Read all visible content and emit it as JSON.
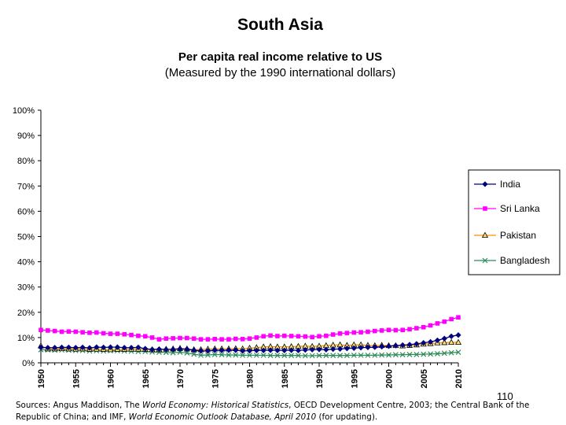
{
  "slide": {
    "title": "South Asia",
    "page_number": "110",
    "sources": {
      "lead": "Sources: Angus Maddison, The ",
      "work1": "World Economy: Historical Statistics",
      "mid": ", OECD Development Centre, 2003; the Central Bank of the Republic of China; and IMF, ",
      "work2": "World Economic Outlook Database, April 2010",
      "tail": " (for updating)."
    }
  },
  "chart_data": {
    "type": "line",
    "title": "Per capita real income relative to US",
    "subtitle": "(Measured by the 1990 international dollars)",
    "xlabel": "",
    "ylabel": "",
    "ylim": [
      0,
      100
    ],
    "yticks": [
      "0%",
      "10%",
      "20%",
      "30%",
      "40%",
      "50%",
      "60%",
      "70%",
      "80%",
      "90%",
      "100%"
    ],
    "xticks": [
      "1950",
      "1955",
      "1960",
      "1965",
      "1970",
      "1975",
      "1980",
      "1985",
      "1990",
      "1995",
      "2000",
      "2005",
      "2010"
    ],
    "x": [
      1950,
      1951,
      1952,
      1953,
      1954,
      1955,
      1956,
      1957,
      1958,
      1959,
      1960,
      1961,
      1962,
      1963,
      1964,
      1965,
      1966,
      1967,
      1968,
      1969,
      1970,
      1971,
      1972,
      1973,
      1974,
      1975,
      1976,
      1977,
      1978,
      1979,
      1980,
      1981,
      1982,
      1983,
      1984,
      1985,
      1986,
      1987,
      1988,
      1989,
      1990,
      1991,
      1992,
      1993,
      1994,
      1995,
      1996,
      1997,
      1998,
      1999,
      2000,
      2001,
      2002,
      2003,
      2004,
      2005,
      2006,
      2007,
      2008,
      2009,
      2010
    ],
    "grid": false,
    "legend": "right",
    "series": [
      {
        "name": "India",
        "color": "#000080",
        "marker": "diamond",
        "values": [
          6.1,
          6.0,
          6.0,
          6.1,
          6.1,
          6.0,
          6.1,
          5.9,
          6.2,
          6.1,
          6.2,
          6.2,
          6.0,
          6.0,
          6.1,
          5.6,
          5.3,
          5.4,
          5.3,
          5.3,
          5.5,
          5.4,
          5.0,
          4.7,
          4.7,
          5.0,
          4.9,
          5.0,
          5.0,
          4.7,
          4.8,
          4.9,
          4.9,
          5.0,
          4.9,
          4.9,
          5.0,
          4.9,
          5.1,
          5.2,
          5.3,
          5.2,
          5.4,
          5.5,
          5.7,
          5.8,
          6.0,
          6.1,
          6.2,
          6.4,
          6.6,
          6.8,
          7.0,
          7.2,
          7.5,
          7.9,
          8.3,
          8.9,
          9.6,
          10.5,
          11.0
        ]
      },
      {
        "name": "Sri Lanka",
        "color": "#ff00ff",
        "marker": "square",
        "values": [
          13.0,
          12.8,
          12.6,
          12.3,
          12.4,
          12.3,
          12.1,
          11.9,
          12.0,
          11.7,
          11.5,
          11.5,
          11.3,
          11.0,
          10.7,
          10.5,
          10.0,
          9.3,
          9.6,
          9.7,
          9.8,
          9.8,
          9.6,
          9.3,
          9.3,
          9.4,
          9.3,
          9.3,
          9.5,
          9.4,
          9.6,
          10.0,
          10.5,
          10.8,
          10.6,
          10.7,
          10.6,
          10.5,
          10.4,
          10.2,
          10.5,
          10.7,
          11.2,
          11.6,
          11.8,
          12.0,
          12.1,
          12.3,
          12.6,
          12.8,
          13.0,
          12.9,
          13.0,
          13.3,
          13.7,
          14.1,
          14.8,
          15.6,
          16.3,
          17.3,
          18.0
        ]
      },
      {
        "name": "Pakistan",
        "color": "#ff8c00",
        "marker": "triangle",
        "values": [
          6.7,
          5.5,
          5.5,
          5.6,
          5.5,
          5.4,
          5.5,
          5.3,
          5.4,
          5.3,
          5.2,
          5.3,
          5.3,
          5.4,
          5.4,
          5.3,
          5.2,
          5.2,
          5.4,
          5.5,
          5.7,
          5.5,
          5.2,
          5.2,
          5.4,
          5.5,
          5.5,
          5.5,
          5.6,
          5.5,
          5.8,
          6.0,
          6.3,
          6.4,
          6.3,
          6.3,
          6.4,
          6.5,
          6.6,
          6.5,
          6.6,
          6.8,
          7.0,
          7.1,
          6.9,
          7.1,
          7.1,
          6.9,
          6.8,
          6.9,
          6.8,
          6.8,
          6.7,
          6.9,
          7.1,
          7.4,
          7.6,
          7.9,
          8.0,
          8.1,
          8.1
        ]
      },
      {
        "name": "Bangladesh",
        "color": "#2e8b57",
        "marker": "x",
        "values": [
          5.2,
          5.1,
          5.0,
          5.1,
          5.0,
          4.9,
          4.9,
          4.7,
          4.8,
          4.7,
          4.8,
          4.8,
          4.7,
          4.6,
          4.5,
          4.5,
          4.3,
          4.2,
          4.1,
          4.0,
          4.2,
          3.9,
          3.4,
          3.0,
          3.1,
          3.3,
          3.2,
          3.1,
          3.1,
          3.0,
          3.0,
          3.0,
          3.0,
          2.9,
          2.9,
          2.9,
          2.9,
          2.9,
          2.8,
          2.8,
          2.9,
          2.9,
          2.9,
          2.9,
          2.9,
          3.0,
          3.0,
          3.0,
          3.0,
          3.1,
          3.1,
          3.2,
          3.2,
          3.3,
          3.3,
          3.4,
          3.5,
          3.6,
          3.8,
          4.0,
          4.2
        ]
      }
    ]
  }
}
